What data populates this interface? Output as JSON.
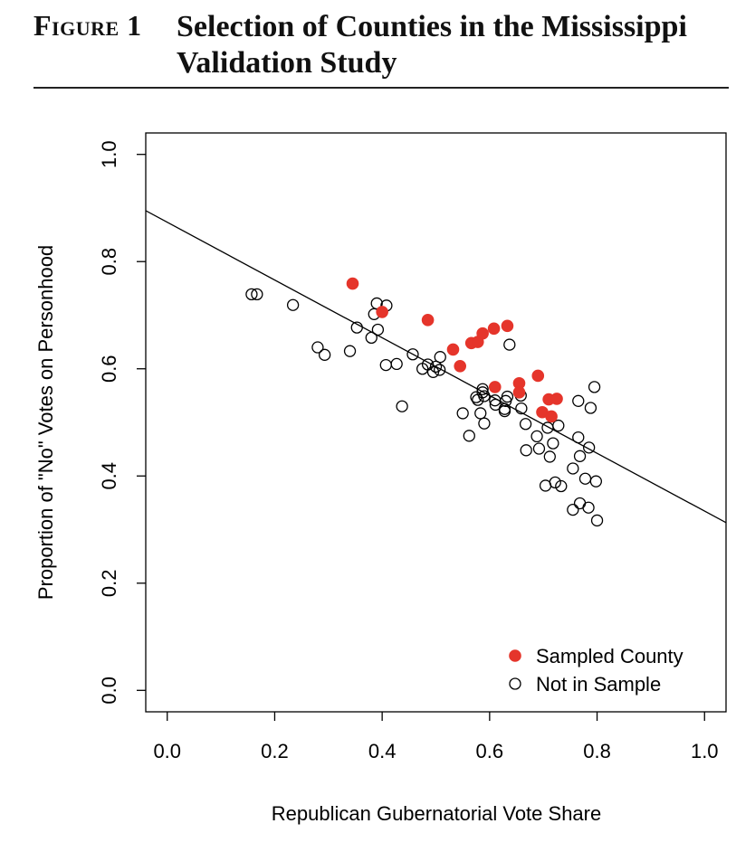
{
  "figure": {
    "label": "Figure 1",
    "title": "Selection of Counties in the Mississippi Validation Study"
  },
  "colors": {
    "sampled": "#e5352b",
    "not_sampled_stroke": "#000000"
  },
  "chart_data": {
    "type": "scatter",
    "xlabel": "Republican Gubernatorial Vote Share",
    "ylabel": "Proportion of \"No\" Votes on Personhood",
    "xlim": [
      -0.04,
      1.04
    ],
    "ylim": [
      -0.04,
      1.04
    ],
    "xticks": [
      0.0,
      0.2,
      0.4,
      0.6,
      0.8,
      1.0
    ],
    "yticks": [
      0.0,
      0.2,
      0.4,
      0.6,
      0.8,
      1.0
    ],
    "xtick_labels": [
      "0.0",
      "0.2",
      "0.4",
      "0.6",
      "0.8",
      "1.0"
    ],
    "ytick_labels": [
      "0.0",
      "0.2",
      "0.4",
      "0.6",
      "0.8",
      "1.0"
    ],
    "legend_position": "bottom-right",
    "fit_line": {
      "x": [
        -0.04,
        1.04
      ],
      "y": [
        0.895,
        0.313
      ]
    },
    "series": [
      {
        "name": "Sampled County",
        "style": "filled",
        "points": [
          [
            0.345,
            0.759
          ],
          [
            0.4,
            0.706
          ],
          [
            0.485,
            0.691
          ],
          [
            0.532,
            0.636
          ],
          [
            0.545,
            0.605
          ],
          [
            0.566,
            0.648
          ],
          [
            0.578,
            0.65
          ],
          [
            0.587,
            0.666
          ],
          [
            0.608,
            0.675
          ],
          [
            0.633,
            0.68
          ],
          [
            0.61,
            0.566
          ],
          [
            0.655,
            0.573
          ],
          [
            0.655,
            0.556
          ],
          [
            0.69,
            0.587
          ],
          [
            0.698,
            0.519
          ],
          [
            0.71,
            0.543
          ],
          [
            0.725,
            0.544
          ],
          [
            0.715,
            0.511
          ]
        ]
      },
      {
        "name": "Not in Sample",
        "style": "open",
        "points": [
          [
            0.157,
            0.739
          ],
          [
            0.167,
            0.739
          ],
          [
            0.234,
            0.719
          ],
          [
            0.28,
            0.64
          ],
          [
            0.293,
            0.626
          ],
          [
            0.34,
            0.633
          ],
          [
            0.353,
            0.677
          ],
          [
            0.38,
            0.658
          ],
          [
            0.385,
            0.702
          ],
          [
            0.39,
            0.722
          ],
          [
            0.392,
            0.673
          ],
          [
            0.408,
            0.718
          ],
          [
            0.407,
            0.607
          ],
          [
            0.427,
            0.609
          ],
          [
            0.437,
            0.53
          ],
          [
            0.457,
            0.627
          ],
          [
            0.475,
            0.6
          ],
          [
            0.485,
            0.608
          ],
          [
            0.495,
            0.594
          ],
          [
            0.5,
            0.604
          ],
          [
            0.507,
            0.598
          ],
          [
            0.508,
            0.622
          ],
          [
            0.55,
            0.517
          ],
          [
            0.562,
            0.475
          ],
          [
            0.575,
            0.547
          ],
          [
            0.578,
            0.542
          ],
          [
            0.583,
            0.517
          ],
          [
            0.587,
            0.562
          ],
          [
            0.587,
            0.556
          ],
          [
            0.59,
            0.549
          ],
          [
            0.59,
            0.498
          ],
          [
            0.61,
            0.541
          ],
          [
            0.611,
            0.533
          ],
          [
            0.628,
            0.525
          ],
          [
            0.628,
            0.521
          ],
          [
            0.63,
            0.54
          ],
          [
            0.633,
            0.548
          ],
          [
            0.637,
            0.645
          ],
          [
            0.658,
            0.55
          ],
          [
            0.659,
            0.526
          ],
          [
            0.667,
            0.497
          ],
          [
            0.668,
            0.448
          ],
          [
            0.688,
            0.474
          ],
          [
            0.692,
            0.451
          ],
          [
            0.704,
            0.382
          ],
          [
            0.708,
            0.49
          ],
          [
            0.712,
            0.436
          ],
          [
            0.718,
            0.461
          ],
          [
            0.722,
            0.388
          ],
          [
            0.728,
            0.494
          ],
          [
            0.733,
            0.381
          ],
          [
            0.755,
            0.414
          ],
          [
            0.755,
            0.337
          ],
          [
            0.765,
            0.54
          ],
          [
            0.765,
            0.472
          ],
          [
            0.768,
            0.437
          ],
          [
            0.768,
            0.349
          ],
          [
            0.778,
            0.395
          ],
          [
            0.784,
            0.341
          ],
          [
            0.785,
            0.453
          ],
          [
            0.788,
            0.527
          ],
          [
            0.795,
            0.566
          ],
          [
            0.798,
            0.39
          ],
          [
            0.8,
            0.317
          ]
        ]
      }
    ]
  }
}
